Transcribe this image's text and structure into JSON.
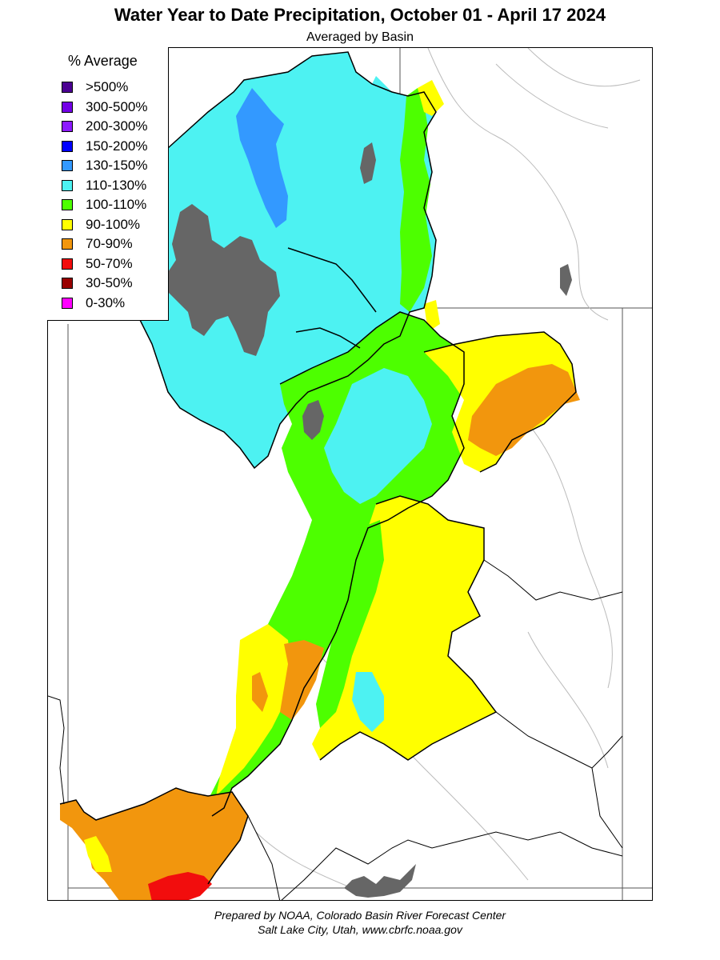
{
  "title": "Water Year to Date Precipitation, October 01  - April 17 2024",
  "subtitle": "Averaged by Basin",
  "legend": {
    "title": "% Average",
    "items": [
      {
        "label": ">500%",
        "color": "#4b0092"
      },
      {
        "label": "300-500%",
        "color": "#7300e6"
      },
      {
        "label": "200-300%",
        "color": "#8c1aff"
      },
      {
        "label": "150-200%",
        "color": "#0000ff"
      },
      {
        "label": "130-150%",
        "color": "#3399ff"
      },
      {
        "label": "110-130%",
        "color": "#4df2f2"
      },
      {
        "label": "100-110%",
        "color": "#4dff00"
      },
      {
        "label": "90-100%",
        "color": "#ffff00"
      },
      {
        "label": "70-90%",
        "color": "#f2960d"
      },
      {
        "label": "50-70%",
        "color": "#f20d0d"
      },
      {
        "label": "30-50%",
        "color": "#990000"
      },
      {
        "label": "0-30%",
        "color": "#ff00ff"
      }
    ]
  },
  "lake_color": "#666666",
  "footer": {
    "line1": "Prepared by NOAA, Colorado Basin River Forecast Center",
    "line2": "Salt Lake City, Utah, www.cbrfc.noaa.gov"
  }
}
